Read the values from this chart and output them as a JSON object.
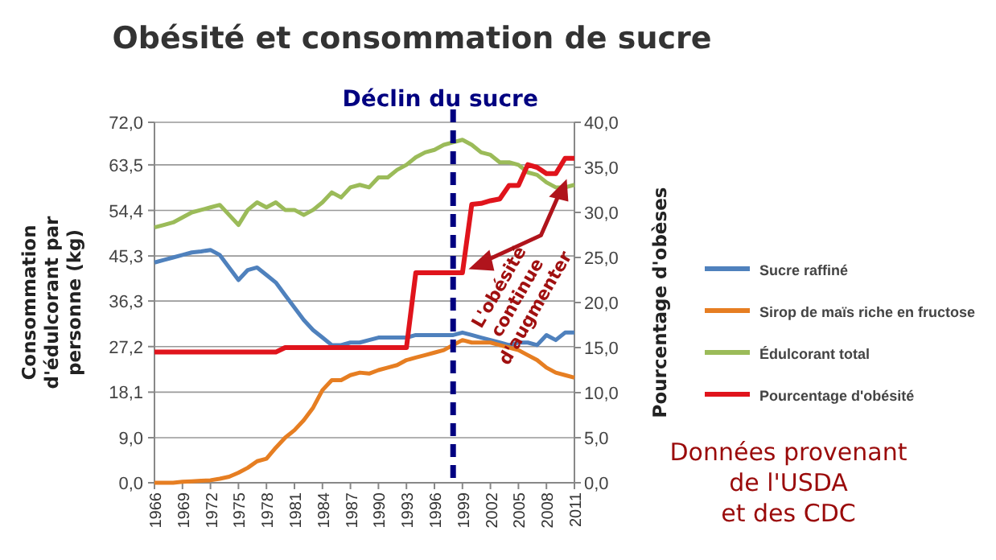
{
  "chart_data": {
    "type": "line",
    "title": "Obésité et consommation de sucre",
    "ylabel": "Consommation d'édulcorant par personne (kg)",
    "y2label": "Pourcentage d'obèses",
    "x": [
      1966,
      1967,
      1968,
      1969,
      1970,
      1971,
      1972,
      1973,
      1974,
      1975,
      1976,
      1977,
      1978,
      1979,
      1980,
      1981,
      1982,
      1983,
      1984,
      1985,
      1986,
      1987,
      1988,
      1989,
      1990,
      1991,
      1992,
      1993,
      1994,
      1995,
      1996,
      1997,
      1998,
      1999,
      2000,
      2001,
      2002,
      2003,
      2004,
      2005,
      2006,
      2007,
      2008,
      2009,
      2010,
      2011
    ],
    "xlim": [
      1966,
      2011
    ],
    "xticks": [
      1966,
      1969,
      1972,
      1975,
      1978,
      1981,
      1984,
      1987,
      1990,
      1993,
      1996,
      1999,
      2002,
      2005,
      2008,
      2011
    ],
    "ylim": [
      0,
      72
    ],
    "yticks": [
      {
        "value": 0,
        "label": "0,0"
      },
      {
        "value": 9,
        "label": "9,0"
      },
      {
        "value": 18.1,
        "label": "18,1"
      },
      {
        "value": 27.2,
        "label": "27,2"
      },
      {
        "value": 36.3,
        "label": "36,3"
      },
      {
        "value": 45.3,
        "label": "45,3"
      },
      {
        "value": 54.4,
        "label": "54,4"
      },
      {
        "value": 63.5,
        "label": "63,5"
      },
      {
        "value": 72,
        "label": "72,0"
      }
    ],
    "y2lim": [
      0,
      40
    ],
    "y2ticks": [
      {
        "value": 0,
        "label": "0,0"
      },
      {
        "value": 5,
        "label": "5,0"
      },
      {
        "value": 10,
        "label": "10,0"
      },
      {
        "value": 15,
        "label": "15,0"
      },
      {
        "value": 20,
        "label": "20,0"
      },
      {
        "value": 25,
        "label": "25,0"
      },
      {
        "value": 30,
        "label": "30,0"
      },
      {
        "value": 35,
        "label": "35,0"
      },
      {
        "value": 40,
        "label": "40,0"
      }
    ],
    "grid": "y",
    "legend": "right",
    "series": [
      {
        "name": "Sucre raffiné",
        "color": "#4f81bd",
        "values": [
          44,
          44.5,
          45,
          45.5,
          46,
          46.2,
          46.5,
          45.5,
          43,
          40.5,
          42.5,
          43,
          41.5,
          40,
          37.5,
          35,
          32.5,
          30.5,
          29,
          27.5,
          27.5,
          28,
          28,
          28.5,
          29,
          29,
          29,
          29,
          29.5,
          29.5,
          29.5,
          29.5,
          29.5,
          30,
          29.5,
          29,
          28.5,
          28,
          27.5,
          28,
          28,
          27.5,
          29.5,
          28.5,
          30,
          30
        ]
      },
      {
        "name": "Sirop de maïs riche en fructose",
        "color": "#e67e22",
        "values": [
          0,
          0,
          0,
          0.2,
          0.3,
          0.4,
          0.5,
          0.8,
          1.2,
          2,
          3,
          4.3,
          4.8,
          7,
          9,
          10.5,
          12.5,
          15,
          18.5,
          20.5,
          20.5,
          21.5,
          22,
          21.8,
          22.5,
          23,
          23.5,
          24.5,
          25,
          25.5,
          26,
          26.5,
          27.5,
          28.5,
          28,
          28,
          28,
          27.5,
          27,
          26.5,
          25.5,
          24.5,
          23,
          22,
          21.5,
          21
        ]
      },
      {
        "name": "Édulcorant total",
        "color": "#9bbb59",
        "values": [
          51,
          51.5,
          52,
          53,
          54,
          54.5,
          55,
          55.5,
          53.5,
          51.5,
          54.5,
          56,
          55,
          56,
          54.5,
          54.5,
          53.5,
          54.5,
          56,
          58,
          57,
          59,
          59.5,
          59,
          61,
          61,
          62.5,
          63.5,
          65,
          66,
          66.5,
          67.5,
          68,
          68.5,
          67.5,
          66,
          65.5,
          64,
          64,
          63.5,
          62,
          61.5,
          60,
          59,
          59,
          59.5
        ]
      },
      {
        "name": "Pourcentage d'obésité",
        "color": "#e0141c",
        "axis": "y2",
        "values": [
          14.5,
          14.5,
          14.5,
          14.5,
          14.5,
          14.5,
          14.5,
          14.5,
          14.5,
          14.5,
          14.5,
          14.5,
          14.5,
          14.5,
          15,
          15,
          15,
          15,
          15,
          15,
          15,
          15,
          15,
          15,
          15,
          15,
          15,
          15,
          23.3,
          23.3,
          23.3,
          23.3,
          23.3,
          23.3,
          30.9,
          31,
          31.3,
          31.5,
          33,
          33,
          35.3,
          35,
          34.3,
          34.3,
          36,
          36
        ]
      }
    ],
    "ref_lines": [
      {
        "axis": "x",
        "value": 1998,
        "label": "Déclin du sucre",
        "color": "#000080",
        "line_style": "dashed"
      }
    ],
    "annotations": [
      {
        "text": "L'obésité continue d'augmenter",
        "x": 2000,
        "y": 43
      },
      "Données provenant de l'USDA et des CDC"
    ]
  }
}
